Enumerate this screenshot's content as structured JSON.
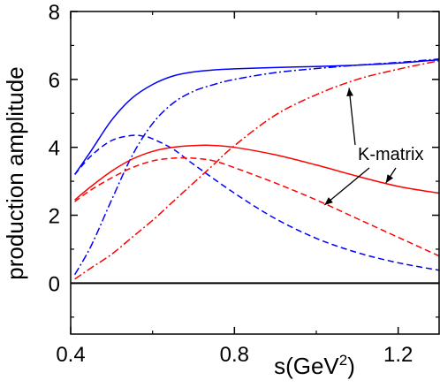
{
  "chart_data": {
    "type": "line",
    "xlabel": "s(GeV²)",
    "ylabel": "production amplitude",
    "xlim": [
      0.4,
      1.3
    ],
    "ylim": [
      -1.5,
      8
    ],
    "x_ticks": [
      0.4,
      0.8,
      1.2
    ],
    "x_tick_labels": [
      "0.4",
      "0.8",
      "1.2"
    ],
    "y_ticks": [
      0,
      2,
      4,
      6,
      8
    ],
    "y_tick_labels": [
      "0",
      "2",
      "4",
      "6",
      "8"
    ],
    "grid": false,
    "legend": "none",
    "zero_line": 0,
    "annotation": {
      "text": "K-matrix",
      "arrows_to": [
        {
          "x": 1.08,
          "y": 5.75
        },
        {
          "x": 1.02,
          "y": 2.3
        },
        {
          "x": 1.17,
          "y": 2.95
        }
      ]
    },
    "series": [
      {
        "color": "#0000ff",
        "style": "solid",
        "x": [
          0.41,
          0.45,
          0.5,
          0.55,
          0.6,
          0.65,
          0.7,
          0.75,
          0.8,
          0.9,
          1.0,
          1.1,
          1.2,
          1.3
        ],
        "y": [
          3.2,
          3.9,
          4.8,
          5.45,
          5.85,
          6.1,
          6.22,
          6.28,
          6.31,
          6.35,
          6.38,
          6.42,
          6.48,
          6.58
        ]
      },
      {
        "color": "#0000ff",
        "style": "dashed",
        "x": [
          0.41,
          0.45,
          0.5,
          0.55,
          0.58,
          0.6,
          0.65,
          0.7,
          0.8,
          0.9,
          1.0,
          1.1,
          1.2,
          1.3
        ],
        "y": [
          3.2,
          3.75,
          4.2,
          4.35,
          4.32,
          4.25,
          3.95,
          3.5,
          2.65,
          1.9,
          1.32,
          0.9,
          0.6,
          0.38
        ]
      },
      {
        "color": "#0000ff",
        "style": "dashdot",
        "x": [
          0.41,
          0.45,
          0.5,
          0.55,
          0.6,
          0.65,
          0.7,
          0.75,
          0.8,
          0.9,
          1.0,
          1.1,
          1.2,
          1.3
        ],
        "y": [
          0.25,
          1.1,
          2.45,
          3.75,
          4.7,
          5.3,
          5.65,
          5.85,
          6.0,
          6.2,
          6.32,
          6.42,
          6.5,
          6.6
        ]
      },
      {
        "color": "#ff0000",
        "style": "solid",
        "x": [
          0.41,
          0.45,
          0.5,
          0.55,
          0.6,
          0.65,
          0.7,
          0.74,
          0.8,
          0.9,
          1.0,
          1.1,
          1.2,
          1.3
        ],
        "y": [
          2.45,
          2.85,
          3.3,
          3.65,
          3.88,
          4.0,
          4.05,
          4.06,
          4.0,
          3.78,
          3.48,
          3.15,
          2.85,
          2.65
        ]
      },
      {
        "color": "#ff0000",
        "style": "dashed",
        "x": [
          0.41,
          0.45,
          0.5,
          0.55,
          0.6,
          0.65,
          0.7,
          0.75,
          0.8,
          0.9,
          1.0,
          1.1,
          1.2,
          1.3
        ],
        "y": [
          2.4,
          2.75,
          3.1,
          3.4,
          3.6,
          3.68,
          3.68,
          3.6,
          3.4,
          2.95,
          2.45,
          1.9,
          1.35,
          0.8
        ]
      },
      {
        "color": "#ff0000",
        "style": "dashdot",
        "x": [
          0.41,
          0.45,
          0.5,
          0.55,
          0.6,
          0.65,
          0.7,
          0.75,
          0.8,
          0.9,
          1.0,
          1.1,
          1.2,
          1.3
        ],
        "y": [
          0.12,
          0.45,
          0.85,
          1.35,
          1.85,
          2.4,
          2.95,
          3.5,
          4.05,
          4.95,
          5.55,
          6.0,
          6.3,
          6.55
        ]
      }
    ]
  }
}
